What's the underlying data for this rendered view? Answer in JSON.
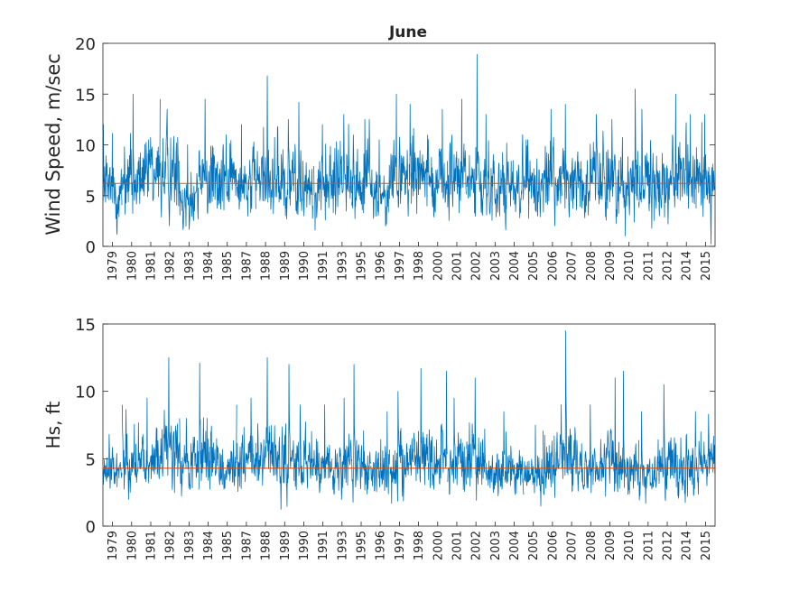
{
  "chart_data": [
    {
      "type": "line",
      "title": "June",
      "xlabel": "",
      "ylabel": "Wind Speed, m/sec",
      "ylim": [
        0,
        20
      ],
      "yticks": [
        0,
        5,
        10,
        15,
        20
      ],
      "x_tick_labels": [
        "1979",
        "1980",
        "1981",
        "1982",
        "1983",
        "1984",
        "1985",
        "1987",
        "1988",
        "1989",
        "1990",
        "1991",
        "1993",
        "1995",
        "1996",
        "1997",
        "1998",
        "2000",
        "2001",
        "2002",
        "2003",
        "2004",
        "2005",
        "2006",
        "2007",
        "2008",
        "2009",
        "2010",
        "2011",
        "2012",
        "2014",
        "2015"
      ],
      "series": [
        {
          "color": "#0072BD",
          "segment_stats": [
            {
              "year": "1979",
              "mean": 5.5,
              "spread": 2.4,
              "peak": 12.0
            },
            {
              "year": "1980",
              "mean": 6.3,
              "spread": 2.6,
              "peak": 15.0
            },
            {
              "year": "1981",
              "mean": 6.8,
              "spread": 2.5,
              "peak": 14.5
            },
            {
              "year": "1982",
              "mean": 7.0,
              "spread": 2.6,
              "peak": 13.5
            },
            {
              "year": "1983",
              "mean": 4.5,
              "spread": 2.0,
              "peak": 10.0
            },
            {
              "year": "1984",
              "mean": 6.5,
              "spread": 2.5,
              "peak": 14.5
            },
            {
              "year": "1985",
              "mean": 6.2,
              "spread": 2.5,
              "peak": 11.0
            },
            {
              "year": "1987",
              "mean": 6.3,
              "spread": 2.6,
              "peak": 12.0
            },
            {
              "year": "1988",
              "mean": 6.6,
              "spread": 2.6,
              "peak": 16.8
            },
            {
              "year": "1989",
              "mean": 6.0,
              "spread": 2.4,
              "peak": 12.5
            },
            {
              "year": "1990",
              "mean": 5.6,
              "spread": 2.3,
              "peak": 14.2
            },
            {
              "year": "1991",
              "mean": 6.0,
              "spread": 2.4,
              "peak": 12.0
            },
            {
              "year": "1993",
              "mean": 6.2,
              "spread": 2.5,
              "peak": 13.0
            },
            {
              "year": "1995",
              "mean": 6.0,
              "spread": 2.4,
              "peak": 12.5
            },
            {
              "year": "1996",
              "mean": 5.0,
              "spread": 2.0,
              "peak": 10.5
            },
            {
              "year": "1997",
              "mean": 6.5,
              "spread": 2.5,
              "peak": 15.0
            },
            {
              "year": "1998",
              "mean": 6.4,
              "spread": 2.5,
              "peak": 14.0
            },
            {
              "year": "2000",
              "mean": 6.3,
              "spread": 2.5,
              "peak": 13.5
            },
            {
              "year": "2001",
              "mean": 6.5,
              "spread": 2.6,
              "peak": 14.5
            },
            {
              "year": "2002",
              "mean": 6.2,
              "spread": 2.6,
              "peak": 18.9
            },
            {
              "year": "2003",
              "mean": 5.8,
              "spread": 2.4,
              "peak": 13.0
            },
            {
              "year": "2004",
              "mean": 5.8,
              "spread": 2.3,
              "peak": 11.0
            },
            {
              "year": "2005",
              "mean": 6.0,
              "spread": 2.4,
              "peak": 10.5
            },
            {
              "year": "2006",
              "mean": 6.1,
              "spread": 2.4,
              "peak": 13.5
            },
            {
              "year": "2007",
              "mean": 6.2,
              "spread": 2.5,
              "peak": 14.0
            },
            {
              "year": "2008",
              "mean": 6.0,
              "spread": 2.5,
              "peak": 13.0
            },
            {
              "year": "2009",
              "mean": 6.2,
              "spread": 2.5,
              "peak": 12.5
            },
            {
              "year": "2010",
              "mean": 6.3,
              "spread": 2.6,
              "peak": 15.5
            },
            {
              "year": "2011",
              "mean": 6.0,
              "spread": 2.5,
              "peak": 13.5
            },
            {
              "year": "2012",
              "mean": 6.3,
              "spread": 2.6,
              "peak": 15.0
            },
            {
              "year": "2014",
              "mean": 6.1,
              "spread": 2.5,
              "peak": 13.0
            },
            {
              "year": "2015",
              "mean": 6.3,
              "spread": 2.5,
              "peak": 13.0
            }
          ]
        }
      ],
      "reference_line": {
        "value": 6.2,
        "color": "#D95319"
      }
    },
    {
      "type": "line",
      "title": "",
      "xlabel": "",
      "ylabel": "Hs, ft",
      "ylim": [
        0,
        15
      ],
      "yticks": [
        0,
        5,
        10,
        15
      ],
      "x_tick_labels": [
        "1979",
        "1980",
        "1981",
        "1982",
        "1983",
        "1984",
        "1985",
        "1987",
        "1988",
        "1989",
        "1990",
        "1991",
        "1993",
        "1995",
        "1996",
        "1997",
        "1998",
        "2000",
        "2001",
        "2002",
        "2003",
        "2004",
        "2005",
        "2006",
        "2007",
        "2008",
        "2009",
        "2010",
        "2011",
        "2012",
        "2014",
        "2015"
      ],
      "series": [
        {
          "color": "#0072BD",
          "segment_stats": [
            {
              "year": "1979",
              "mean": 4.0,
              "spread": 1.1,
              "peak": 6.8
            },
            {
              "year": "1980",
              "mean": 4.8,
              "spread": 1.5,
              "peak": 9.0
            },
            {
              "year": "1981",
              "mean": 4.6,
              "spread": 1.4,
              "peak": 9.5
            },
            {
              "year": "1982",
              "mean": 5.5,
              "spread": 1.9,
              "peak": 12.5
            },
            {
              "year": "1983",
              "mean": 4.2,
              "spread": 1.4,
              "peak": 8.0
            },
            {
              "year": "1984",
              "mean": 4.8,
              "spread": 1.7,
              "peak": 12.1
            },
            {
              "year": "1985",
              "mean": 4.3,
              "spread": 1.3,
              "peak": 9.0
            },
            {
              "year": "1987",
              "mean": 4.6,
              "spread": 1.5,
              "peak": 9.5
            },
            {
              "year": "1988",
              "mean": 4.8,
              "spread": 1.7,
              "peak": 12.5
            },
            {
              "year": "1989",
              "mean": 4.6,
              "spread": 1.6,
              "peak": 12.0
            },
            {
              "year": "1990",
              "mean": 4.0,
              "spread": 1.3,
              "peak": 9.0
            },
            {
              "year": "1991",
              "mean": 4.3,
              "spread": 1.4,
              "peak": 9.0
            },
            {
              "year": "1993",
              "mean": 4.3,
              "spread": 1.4,
              "peak": 9.5
            },
            {
              "year": "1995",
              "mean": 4.6,
              "spread": 1.6,
              "peak": 12.0
            },
            {
              "year": "1996",
              "mean": 4.0,
              "spread": 1.3,
              "peak": 8.5
            },
            {
              "year": "1997",
              "mean": 4.6,
              "spread": 1.6,
              "peak": 10.0
            },
            {
              "year": "1998",
              "mean": 4.8,
              "spread": 1.6,
              "peak": 11.7
            },
            {
              "year": "2000",
              "mean": 4.8,
              "spread": 1.6,
              "peak": 11.5
            },
            {
              "year": "2001",
              "mean": 4.5,
              "spread": 1.5,
              "peak": 9.5
            },
            {
              "year": "2002",
              "mean": 5.0,
              "spread": 1.7,
              "peak": 11.0
            },
            {
              "year": "2003",
              "mean": 4.0,
              "spread": 1.3,
              "peak": 8.5
            },
            {
              "year": "2004",
              "mean": 3.6,
              "spread": 1.1,
              "peak": 7.0
            },
            {
              "year": "2005",
              "mean": 3.8,
              "spread": 1.2,
              "peak": 7.5
            },
            {
              "year": "2006",
              "mean": 4.4,
              "spread": 1.5,
              "peak": 9.0
            },
            {
              "year": "2007",
              "mean": 4.8,
              "spread": 1.7,
              "peak": 14.5
            },
            {
              "year": "2008",
              "mean": 4.0,
              "spread": 1.3,
              "peak": 9.0
            },
            {
              "year": "2009",
              "mean": 4.5,
              "spread": 1.5,
              "peak": 11.0
            },
            {
              "year": "2010",
              "mean": 3.8,
              "spread": 1.3,
              "peak": 11.5
            },
            {
              "year": "2011",
              "mean": 4.0,
              "spread": 1.3,
              "peak": 8.5
            },
            {
              "year": "2012",
              "mean": 4.4,
              "spread": 1.5,
              "peak": 10.5
            },
            {
              "year": "2014",
              "mean": 4.2,
              "spread": 1.4,
              "peak": 8.5
            },
            {
              "year": "2015",
              "mean": 4.3,
              "spread": 1.5,
              "peak": 8.3
            }
          ]
        }
      ],
      "reference_line": {
        "value": 4.3,
        "color": "#D95319"
      }
    }
  ]
}
